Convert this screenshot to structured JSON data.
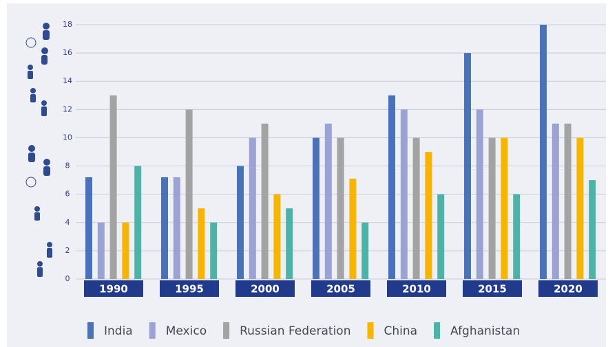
{
  "chart_data": {
    "type": "bar",
    "categories": [
      "1990",
      "1995",
      "2000",
      "2005",
      "2010",
      "2015",
      "2020"
    ],
    "series": [
      {
        "name": "India",
        "color": "#4a72b8",
        "values": [
          7.2,
          7.2,
          8,
          10,
          13,
          16,
          18
        ]
      },
      {
        "name": "Mexico",
        "color": "#9aa3d3",
        "values": [
          4,
          7.2,
          10,
          11,
          12,
          12,
          11
        ]
      },
      {
        "name": "Russian Federation",
        "color": "#a3a3a3",
        "values": [
          13,
          12,
          11,
          10,
          10,
          10,
          11
        ]
      },
      {
        "name": "China",
        "color": "#f7b500",
        "values": [
          4,
          5,
          6,
          7.1,
          9,
          10,
          10
        ]
      },
      {
        "name": "Afghanistan",
        "color": "#4db3a7",
        "values": [
          8,
          4,
          5,
          4,
          6,
          6,
          7
        ]
      }
    ],
    "ylim": [
      0,
      18
    ],
    "yticks": [
      0,
      2,
      4,
      6,
      8,
      10,
      12,
      14,
      16,
      18
    ],
    "grid": true
  }
}
